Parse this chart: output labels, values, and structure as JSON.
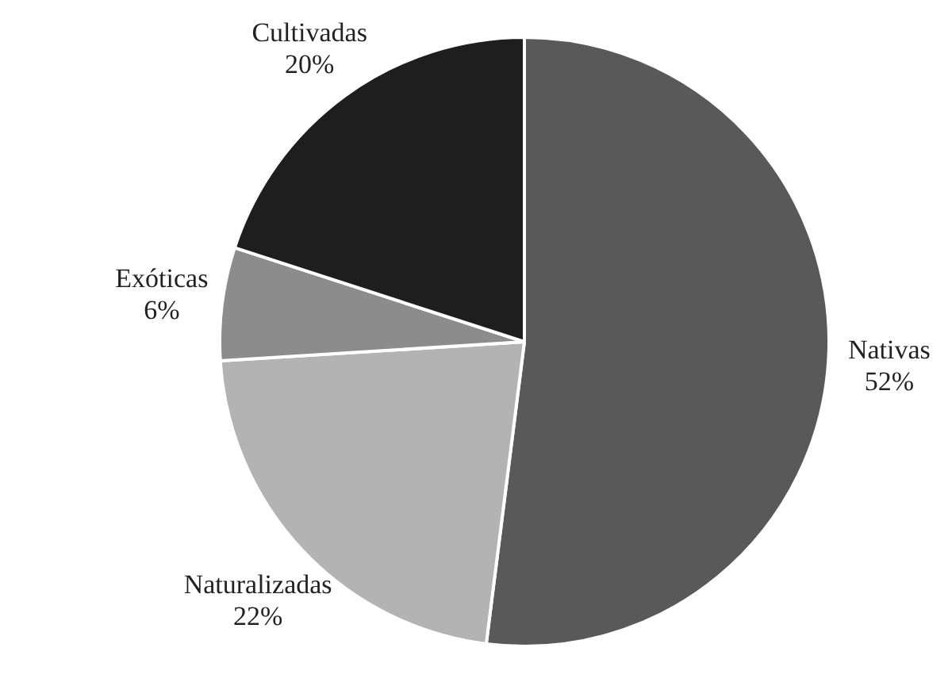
{
  "chart_data": {
    "type": "pie",
    "categories": [
      "Nativas",
      "Naturalizadas",
      "Exóticas",
      "Cultivadas"
    ],
    "values": [
      52,
      22,
      6,
      20
    ],
    "colors": [
      "#595959",
      "#b3b3b3",
      "#8c8c8c",
      "#1e1e1e"
    ],
    "value_labels": [
      "52%",
      "22%",
      "6%",
      "20%"
    ]
  }
}
